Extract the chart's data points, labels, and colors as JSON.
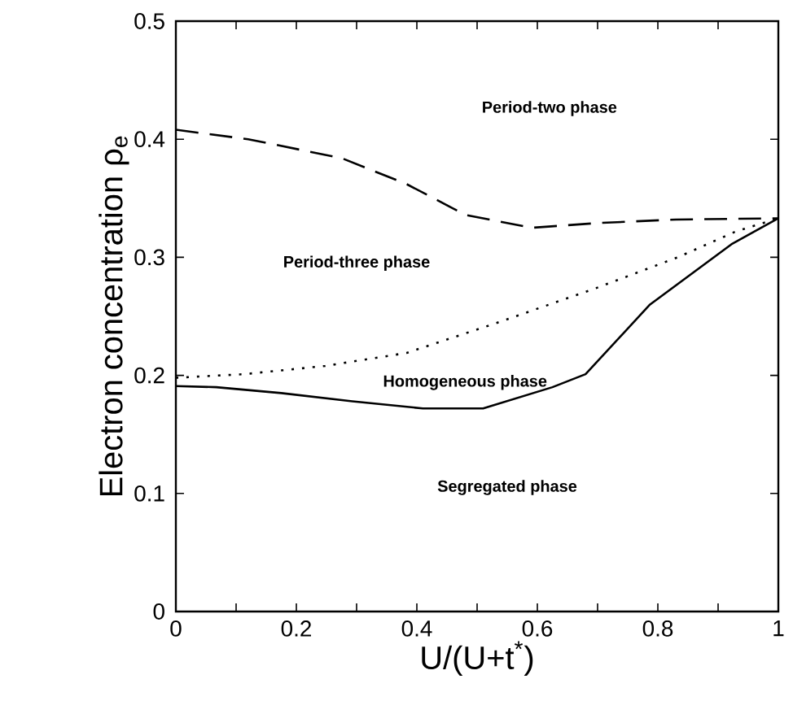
{
  "chart_data": {
    "type": "line",
    "xlabel": "U/(U+t$^{*}$)",
    "ylabel": "Electron concentration ρ$_{e}$",
    "xlim": [
      0,
      1
    ],
    "ylim": [
      0,
      0.5
    ],
    "xticks": [
      0,
      {
        "value": 0.1,
        "label": null
      },
      0.2,
      {
        "value": 0.3,
        "label": null
      },
      0.4,
      {
        "value": 0.5,
        "label": null
      },
      0.6,
      {
        "value": 0.7,
        "label": null
      },
      0.8,
      {
        "value": 0.9,
        "label": null
      },
      1
    ],
    "yticks": [
      0,
      0.1,
      0.2,
      0.3,
      0.4,
      0.5
    ],
    "grid": false,
    "marker": "none",
    "series": [
      {
        "color": "#000000",
        "line_style": "dashed",
        "x": [
          0,
          0.12,
          0.275,
          0.383,
          0.48,
          0.59,
          0.7,
          0.83,
          1
        ],
        "values": [
          0.408,
          0.4,
          0.384,
          0.362,
          0.336,
          0.325,
          0.329,
          0.332,
          0.333
        ]
      },
      {
        "color": "#000000",
        "line_style": "dotted",
        "x": [
          0,
          0.113,
          0.248,
          0.383,
          0.536,
          0.698,
          0.833,
          0.93,
          1
        ],
        "values": [
          0.198,
          0.201,
          0.208,
          0.219,
          0.245,
          0.274,
          0.3,
          0.322,
          0.333
        ]
      },
      {
        "color": "#000000",
        "line_style": "solid",
        "x": [
          0,
          0.067,
          0.175,
          0.293,
          0.41,
          0.51,
          0.625,
          0.68,
          0.787,
          0.922,
          1
        ],
        "values": [
          0.191,
          0.19,
          0.185,
          0.178,
          0.172,
          0.172,
          0.19,
          0.201,
          0.26,
          0.311,
          0.333
        ]
      }
    ],
    "annotations": [
      "Period-two phase",
      "Period-three phase",
      "Homogeneous phase",
      "Segregated phase"
    ]
  }
}
